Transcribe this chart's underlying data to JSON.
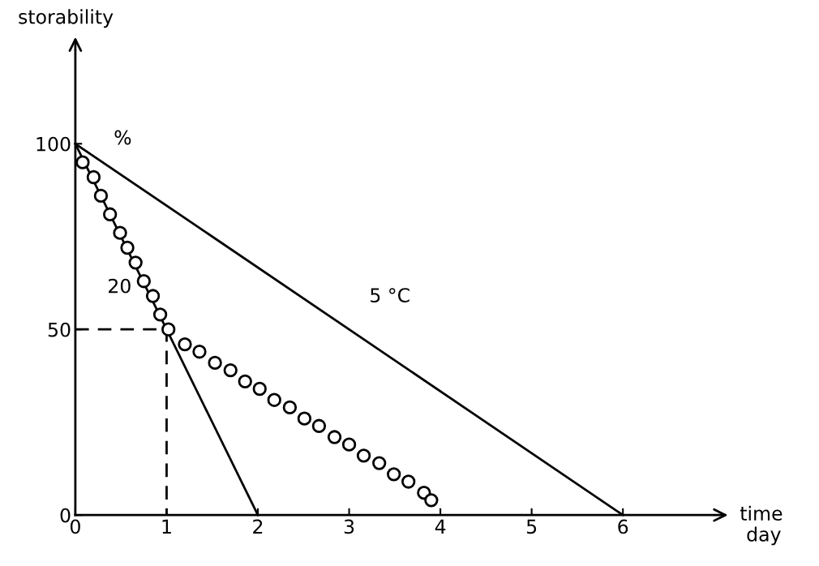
{
  "chart_data": {
    "type": "line",
    "xlabel": "time",
    "ylabel": "storability",
    "xlim": [
      0,
      7
    ],
    "ylim": [
      0,
      125
    ],
    "xticks": [
      0,
      1,
      2,
      3,
      4,
      5,
      6
    ],
    "yticks": [
      0,
      50,
      100
    ],
    "grid": false,
    "legend": false,
    "series": [
      {
        "x": [
          0,
          6
        ],
        "values": [
          100,
          0
        ],
        "color": "#000000",
        "line_style": "solid",
        "marker": "none"
      },
      {
        "x": [
          0,
          2
        ],
        "values": [
          100,
          0
        ],
        "color": "#000000",
        "line_style": "solid",
        "marker": "none"
      },
      {
        "x": [
          0,
          1,
          1
        ],
        "values": [
          50,
          50,
          0
        ],
        "color": "#000000",
        "line_style": "dashed",
        "marker": "none"
      },
      {
        "type": "scatter",
        "x": [
          0.08,
          0.2,
          0.28,
          0.38,
          0.49,
          0.57,
          0.66,
          0.75,
          0.85,
          0.93,
          1.02,
          1.2,
          1.36,
          1.53,
          1.7,
          1.86,
          2.02,
          2.18,
          2.35,
          2.51,
          2.67,
          2.84,
          3.0,
          3.16,
          3.33,
          3.49,
          3.65,
          3.82,
          3.9
        ],
        "values": [
          95,
          91,
          86,
          81,
          76,
          72,
          68,
          63,
          59,
          54,
          50,
          46,
          44,
          41,
          39,
          36,
          34,
          31,
          29,
          26,
          24,
          21,
          19,
          16,
          14,
          11,
          9,
          6,
          4
        ],
        "color": "#000000",
        "marker": "circle"
      }
    ],
    "annotations": [
      "%",
      "20",
      "5 °C",
      "day"
    ]
  }
}
